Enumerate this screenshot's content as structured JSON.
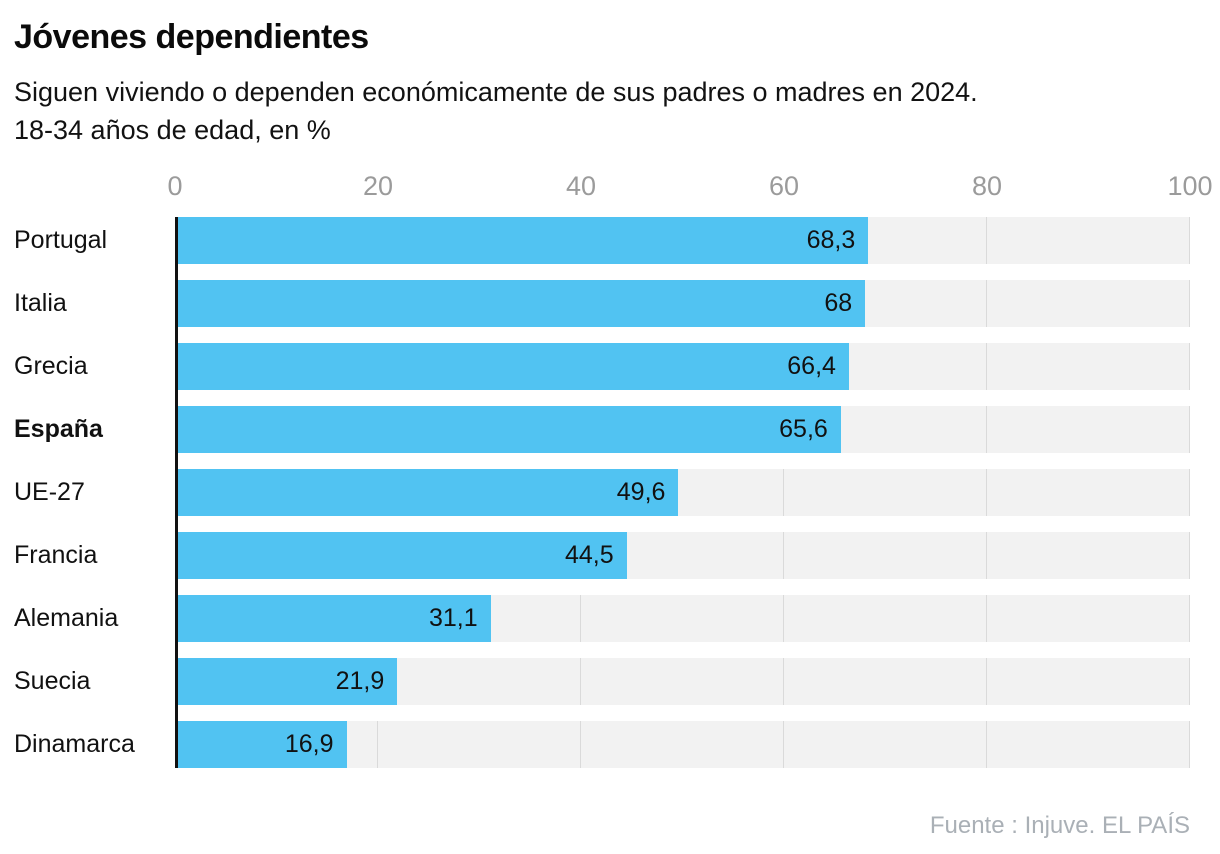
{
  "header": {
    "title": "Jóvenes dependientes",
    "subtitle_line1": "Siguen viviendo o dependen económicamente de sus padres o madres en 2024.",
    "subtitle_line2": "18-34 años de edad, en %"
  },
  "footer": {
    "source": "Fuente : Injuve. EL PAÍS"
  },
  "colors": {
    "bar": "#51c3f2",
    "row_background": "#f2f2f2",
    "gridline": "#dadada",
    "axis_line": "#111111",
    "tick_label": "#9b9b9b",
    "category_label": "#111111",
    "value_label": "#111111",
    "source_text": "#aab0b6"
  },
  "chart_data": {
    "type": "bar",
    "orientation": "horizontal",
    "title": "Jóvenes dependientes",
    "subtitle": "Siguen viviendo o dependen económicamente de sus padres o madres en 2024. 18-34 años de edad, en %",
    "unit": "%",
    "categories": [
      "Portugal",
      "Italia",
      "Grecia",
      "España",
      "UE-27",
      "Francia",
      "Alemania",
      "Suecia",
      "Dinamarca"
    ],
    "values": [
      68.3,
      68,
      66.4,
      65.6,
      49.6,
      44.5,
      31.1,
      21.9,
      16.9
    ],
    "value_labels": [
      "68,3",
      "68",
      "66,4",
      "65,6",
      "49,6",
      "44,5",
      "31,1",
      "21,9",
      "16,9"
    ],
    "bold_categories": [
      "España"
    ],
    "xlim": [
      0,
      100
    ],
    "x_ticks": [
      0,
      20,
      40,
      60,
      80,
      100
    ],
    "grid": true,
    "legend": false,
    "xlabel": "",
    "ylabel": "",
    "source": "Fuente : Injuve. EL PAÍS"
  }
}
